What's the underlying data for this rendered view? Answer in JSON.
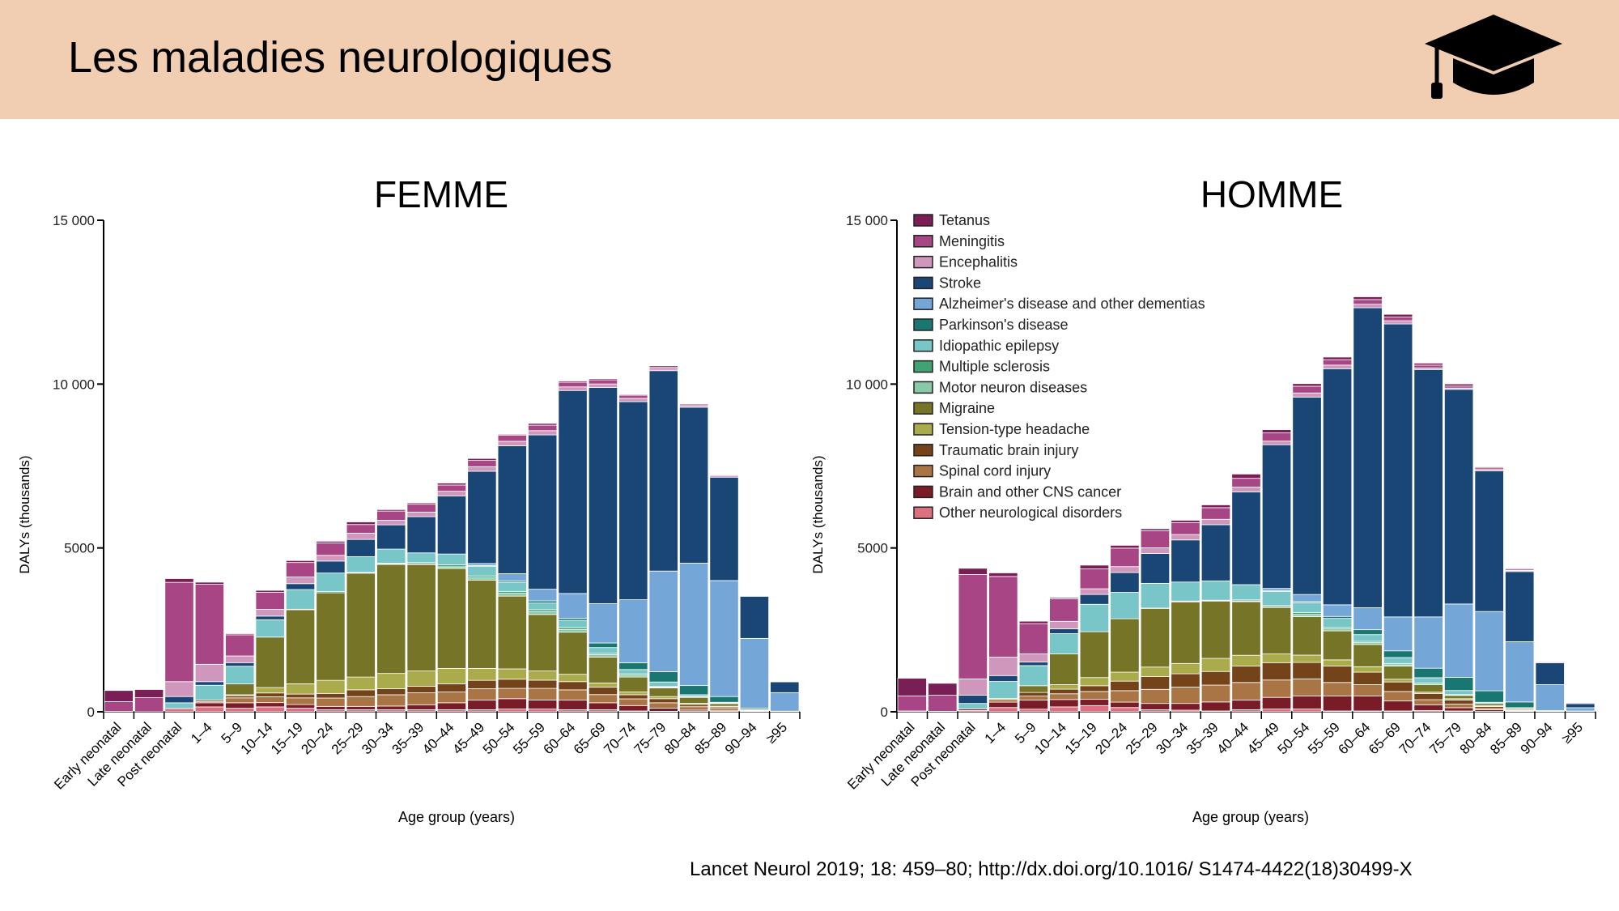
{
  "header": {
    "title": "Les maladies neurologiques",
    "icon": "graduation-cap-icon",
    "background": "#f1cdb1"
  },
  "citation": "Lancet Neurol 2019; 18: 459–80; http://dx.doi.org/10.1016/ S1474-4422(18)30499-X",
  "chart_data": [
    {
      "type": "bar",
      "stacked": true,
      "title": "FEMME",
      "xlabel": "Age group (years)",
      "ylabel": "DALYs (thousands)",
      "ylim": [
        0,
        15000
      ],
      "yticks": [
        0,
        5000,
        10000,
        15000
      ],
      "ytick_labels": [
        "0",
        "5000",
        "10 000",
        "15 000"
      ],
      "grid": false,
      "categories": [
        "Early neonatal",
        "Late neonatal",
        "Post neonatal",
        "1–4",
        "5–9",
        "10–14",
        "15–19",
        "20–24",
        "25–29",
        "30–34",
        "35–39",
        "40–44",
        "45–49",
        "50–54",
        "55–59",
        "60–64",
        "65–69",
        "70–74",
        "75–79",
        "80–84",
        "85–89",
        "90–94",
        "≥95"
      ],
      "series": [
        {
          "name": "Other neurological disorders",
          "color": "#dd7080",
          "values": [
            10,
            0,
            100,
            150,
            110,
            150,
            110,
            65,
            65,
            65,
            65,
            65,
            65,
            85,
            85,
            65,
            65,
            25,
            15,
            10,
            5,
            0,
            0
          ]
        },
        {
          "name": "Brain and other CNS cancer",
          "color": "#7a1c28",
          "values": [
            0,
            0,
            0,
            125,
            165,
            130,
            110,
            100,
            100,
            110,
            150,
            210,
            290,
            315,
            275,
            290,
            210,
            165,
            95,
            40,
            25,
            5,
            0
          ]
        },
        {
          "name": "Spinal cord injury",
          "color": "#aa7545",
          "values": [
            0,
            0,
            0,
            40,
            150,
            180,
            205,
            255,
            300,
            345,
            365,
            330,
            350,
            315,
            355,
            315,
            250,
            205,
            165,
            105,
            70,
            20,
            5
          ]
        },
        {
          "name": "Traumatic brain injury",
          "color": "#74431a",
          "values": [
            0,
            0,
            0,
            40,
            65,
            115,
            115,
            140,
            205,
            185,
            200,
            250,
            255,
            280,
            250,
            250,
            225,
            125,
            125,
            65,
            45,
            20,
            5
          ]
        },
        {
          "name": "Tension-type headache",
          "color": "#aaab4b",
          "values": [
            0,
            0,
            0,
            0,
            30,
            165,
            315,
            400,
            390,
            465,
            465,
            470,
            365,
            315,
            280,
            225,
            130,
            85,
            65,
            40,
            25,
            5,
            0
          ]
        },
        {
          "name": "Migraine",
          "color": "#767426",
          "values": [
            0,
            0,
            0,
            0,
            330,
            1540,
            2260,
            2670,
            3170,
            3325,
            3250,
            3050,
            2695,
            2220,
            1725,
            1285,
            790,
            455,
            265,
            180,
            80,
            15,
            0
          ]
        },
        {
          "name": "Motor neuron diseases",
          "color": "#88c9a8",
          "values": [
            0,
            0,
            0,
            0,
            0,
            0,
            10,
            0,
            10,
            15,
            20,
            50,
            65,
            85,
            85,
            85,
            75,
            60,
            25,
            15,
            10,
            0,
            0
          ]
        },
        {
          "name": "Multiple sclerosis",
          "color": "#40a373",
          "values": [
            0,
            0,
            0,
            0,
            0,
            0,
            5,
            40,
            15,
            25,
            40,
            60,
            60,
            60,
            60,
            60,
            40,
            40,
            15,
            10,
            5,
            0,
            0
          ]
        },
        {
          "name": "Idiopathic epilepsy",
          "color": "#78c6c8",
          "values": [
            0,
            0,
            175,
            455,
            540,
            530,
            600,
            565,
            480,
            430,
            295,
            330,
            290,
            275,
            205,
            215,
            175,
            130,
            140,
            55,
            25,
            5,
            0
          ]
        },
        {
          "name": "Parkinson's disease",
          "color": "#1a7670",
          "values": [
            0,
            0,
            0,
            0,
            0,
            0,
            0,
            0,
            0,
            0,
            0,
            0,
            25,
            40,
            65,
            60,
            140,
            205,
            315,
            280,
            175,
            40,
            10
          ]
        },
        {
          "name": "Alzheimer's disease and other dementias",
          "color": "#75a6d8",
          "values": [
            0,
            0,
            0,
            0,
            0,
            0,
            0,
            0,
            0,
            0,
            0,
            0,
            65,
            225,
            355,
            760,
            1200,
            1925,
            3070,
            3735,
            3540,
            2130,
            565
          ]
        },
        {
          "name": "Stroke",
          "color": "#1a4675",
          "values": [
            0,
            0,
            190,
            110,
            110,
            110,
            180,
            365,
            525,
            740,
            1105,
            1775,
            2815,
            3905,
            4710,
            6195,
            6600,
            6045,
            6115,
            4760,
            3155,
            1285,
            330
          ]
        },
        {
          "name": "Encephalitis",
          "color": "#cf97bb",
          "values": [
            0,
            0,
            455,
            530,
            205,
            205,
            205,
            175,
            190,
            140,
            140,
            140,
            140,
            135,
            130,
            110,
            105,
            100,
            60,
            50,
            40,
            15,
            5
          ]
        },
        {
          "name": "Meningitis",
          "color": "#a84585",
          "values": [
            300,
            430,
            3030,
            2440,
            645,
            520,
            440,
            380,
            265,
            280,
            240,
            190,
            190,
            190,
            165,
            140,
            125,
            95,
            50,
            45,
            30,
            15,
            5
          ]
        },
        {
          "name": "Tetanus",
          "color": "#7a1f55",
          "values": [
            340,
            250,
            115,
            65,
            35,
            60,
            60,
            50,
            80,
            45,
            40,
            60,
            60,
            25,
            55,
            40,
            35,
            25,
            40,
            20,
            10,
            5,
            0
          ]
        }
      ]
    },
    {
      "type": "bar",
      "stacked": true,
      "title": "HOMME",
      "xlabel": "Age group (years)",
      "ylabel": "DALYs (thousands)",
      "ylim": [
        0,
        15000
      ],
      "yticks": [
        0,
        5000,
        10000,
        15000
      ],
      "ytick_labels": [
        "0",
        "5000",
        "10 000",
        "15 000"
      ],
      "grid": false,
      "legend_position": "top-left",
      "categories": [
        "Early neonatal",
        "Late neonatal",
        "Post neonatal",
        "1–4",
        "5–9",
        "10–14",
        "15–19",
        "20–24",
        "25–29",
        "30–34",
        "35–39",
        "40–44",
        "45–49",
        "50–54",
        "55–59",
        "60–64",
        "65–69",
        "70–74",
        "75–79",
        "80–84",
        "85–89",
        "90–94",
        "≥95"
      ],
      "series": [
        {
          "name": "Other neurological disorders",
          "color": "#dd7080",
          "values": [
            0,
            0,
            40,
            130,
            80,
            150,
            190,
            130,
            65,
            50,
            25,
            65,
            85,
            85,
            25,
            25,
            25,
            40,
            25,
            10,
            0,
            0,
            0
          ]
        },
        {
          "name": "Brain and other CNS cancer",
          "color": "#7a1c28",
          "values": [
            0,
            0,
            50,
            165,
            275,
            225,
            190,
            165,
            190,
            205,
            275,
            290,
            355,
            400,
            455,
            455,
            305,
            175,
            100,
            50,
            15,
            5,
            0
          ]
        },
        {
          "name": "Spinal cord injury",
          "color": "#aa7545",
          "values": [
            0,
            0,
            0,
            80,
            125,
            175,
            240,
            350,
            430,
            500,
            515,
            540,
            530,
            520,
            415,
            350,
            290,
            155,
            110,
            40,
            25,
            5,
            0
          ]
        },
        {
          "name": "Traumatic brain injury",
          "color": "#74431a",
          "values": [
            0,
            0,
            0,
            0,
            110,
            140,
            175,
            290,
            390,
            405,
            415,
            500,
            530,
            500,
            500,
            380,
            290,
            190,
            125,
            60,
            25,
            5,
            0
          ]
        },
        {
          "name": "Tension-type headache",
          "color": "#aaab4b",
          "values": [
            0,
            0,
            0,
            30,
            0,
            140,
            250,
            275,
            290,
            315,
            400,
            330,
            265,
            225,
            190,
            165,
            85,
            40,
            40,
            25,
            0,
            0,
            0
          ]
        },
        {
          "name": "Migraine",
          "color": "#767426",
          "values": [
            0,
            0,
            0,
            0,
            205,
            935,
            1400,
            1630,
            1790,
            1880,
            1750,
            1635,
            1420,
            1175,
            885,
            680,
            400,
            225,
            100,
            65,
            35,
            0,
            0
          ]
        },
        {
          "name": "Motor neuron diseases",
          "color": "#88c9a8",
          "values": [
            0,
            0,
            0,
            0,
            0,
            0,
            0,
            0,
            10,
            10,
            10,
            20,
            20,
            65,
            60,
            55,
            40,
            50,
            25,
            0,
            0,
            0,
            0
          ]
        },
        {
          "name": "Multiple sclerosis",
          "color": "#40a373",
          "values": [
            0,
            0,
            0,
            0,
            0,
            0,
            0,
            0,
            0,
            15,
            15,
            35,
            40,
            60,
            45,
            40,
            40,
            0,
            0,
            0,
            0,
            0,
            0
          ]
        },
        {
          "name": "Idiopathic epilepsy",
          "color": "#78c6c8",
          "values": [
            0,
            0,
            165,
            520,
            615,
            620,
            835,
            805,
            755,
            580,
            590,
            465,
            430,
            300,
            275,
            205,
            180,
            165,
            125,
            40,
            25,
            0,
            0
          ]
        },
        {
          "name": "Parkinson's disease",
          "color": "#1a7670",
          "values": [
            0,
            0,
            0,
            0,
            0,
            0,
            0,
            0,
            0,
            0,
            0,
            0,
            25,
            35,
            60,
            150,
            205,
            290,
            400,
            350,
            175,
            25,
            25
          ]
        },
        {
          "name": "Alzheimer's disease and other dementias",
          "color": "#75a6d8",
          "values": [
            0,
            0,
            0,
            0,
            0,
            0,
            0,
            0,
            0,
            0,
            0,
            0,
            65,
            215,
            355,
            670,
            1035,
            1565,
            2240,
            2420,
            1840,
            790,
            100
          ]
        },
        {
          "name": "Stroke",
          "color": "#1a4675",
          "values": [
            25,
            15,
            250,
            180,
            110,
            150,
            300,
            605,
            910,
            1285,
            1715,
            2830,
            4385,
            6025,
            7205,
            9155,
            8940,
            7550,
            6550,
            4295,
            2140,
            665,
            125
          ]
        },
        {
          "name": "Encephalitis",
          "color": "#cf97bb",
          "values": [
            0,
            0,
            500,
            565,
            250,
            225,
            175,
            180,
            175,
            165,
            165,
            150,
            110,
            125,
            110,
            110,
            100,
            50,
            40,
            40,
            35,
            0,
            0
          ]
        },
        {
          "name": "Meningitis",
          "color": "#a84585",
          "values": [
            460,
            490,
            3185,
            2460,
            920,
            690,
            605,
            565,
            520,
            365,
            355,
            265,
            250,
            205,
            165,
            140,
            110,
            85,
            60,
            50,
            40,
            25,
            25
          ]
        },
        {
          "name": "Tetanus",
          "color": "#7a1f55",
          "values": [
            540,
            365,
            190,
            110,
            75,
            35,
            115,
            85,
            60,
            70,
            85,
            130,
            100,
            80,
            80,
            85,
            85,
            60,
            65,
            30,
            25,
            0,
            0
          ]
        }
      ]
    }
  ]
}
